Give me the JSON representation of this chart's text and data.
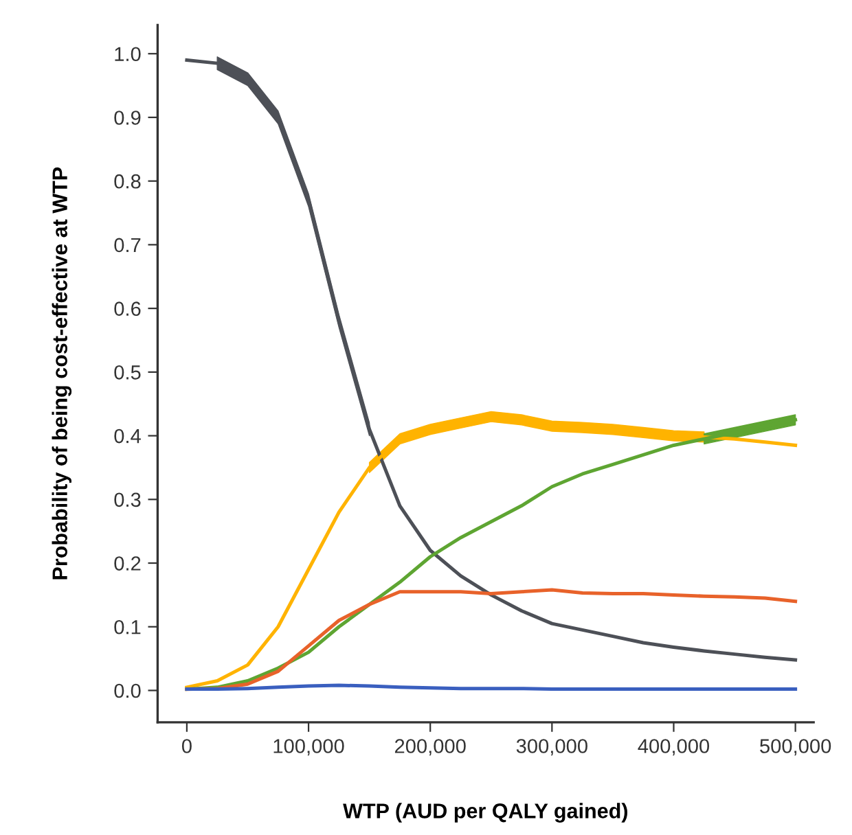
{
  "chart_data": {
    "type": "line",
    "xlabel": "WTP (AUD per QALY gained)",
    "ylabel": "Probability of being cost-effective at WTP",
    "x": [
      0,
      25000,
      50000,
      75000,
      100000,
      125000,
      150000,
      175000,
      200000,
      225000,
      250000,
      275000,
      300000,
      325000,
      350000,
      375000,
      400000,
      425000,
      450000,
      475000,
      500000
    ],
    "series": [
      {
        "color": "#4d5057",
        "values": [
          0.99,
          0.985,
          0.96,
          0.9,
          0.77,
          0.58,
          0.41,
          0.29,
          0.22,
          0.18,
          0.15,
          0.125,
          0.105,
          0.095,
          0.085,
          0.075,
          0.068,
          0.062,
          0.057,
          0.052,
          0.048
        ],
        "lower": [
          null,
          0.975,
          0.95,
          0.89,
          0.76,
          0.57,
          0.4,
          null,
          null,
          null,
          null,
          null,
          null,
          null,
          null,
          null,
          null,
          null,
          null,
          null,
          null
        ],
        "upper": [
          null,
          0.995,
          0.97,
          0.91,
          0.78,
          0.59,
          0.42,
          null,
          null,
          null,
          null,
          null,
          null,
          null,
          null,
          null,
          null,
          null,
          null,
          null,
          null
        ]
      },
      {
        "color": "#ffb300",
        "values": [
          0.005,
          0.015,
          0.04,
          0.1,
          0.19,
          0.28,
          0.35,
          0.395,
          0.41,
          0.42,
          0.43,
          0.425,
          0.415,
          0.413,
          0.41,
          0.405,
          0.4,
          0.398,
          0.395,
          0.39,
          0.385
        ],
        "lower": [
          null,
          null,
          null,
          null,
          null,
          null,
          0.342,
          0.387,
          0.402,
          0.412,
          0.422,
          0.417,
          0.407,
          0.405,
          0.402,
          0.397,
          0.392,
          0.39,
          null,
          null,
          null
        ],
        "upper": [
          null,
          null,
          null,
          null,
          null,
          null,
          0.358,
          0.403,
          0.418,
          0.428,
          0.438,
          0.433,
          0.423,
          0.421,
          0.418,
          0.413,
          0.408,
          0.406,
          null,
          null,
          null
        ]
      },
      {
        "color": "#5ea532",
        "values": [
          0.002,
          0.005,
          0.015,
          0.035,
          0.06,
          0.1,
          0.135,
          0.17,
          0.21,
          0.24,
          0.265,
          0.29,
          0.32,
          0.34,
          0.355,
          0.37,
          0.385,
          0.395,
          0.405,
          0.415,
          0.425
        ],
        "lower": [
          null,
          null,
          null,
          null,
          null,
          null,
          null,
          null,
          null,
          null,
          null,
          null,
          null,
          null,
          null,
          null,
          null,
          0.387,
          0.397,
          0.407,
          0.417
        ],
        "upper": [
          null,
          null,
          null,
          null,
          null,
          null,
          null,
          null,
          null,
          null,
          null,
          null,
          null,
          null,
          null,
          null,
          null,
          0.403,
          0.413,
          0.423,
          0.433
        ]
      },
      {
        "color": "#e8622a",
        "values": [
          0.002,
          0.003,
          0.01,
          0.03,
          0.07,
          0.11,
          0.135,
          0.155,
          0.155,
          0.155,
          0.152,
          0.155,
          0.158,
          0.153,
          0.152,
          0.152,
          0.15,
          0.148,
          0.147,
          0.145,
          0.14
        ]
      },
      {
        "color": "#3a5fbf",
        "values": [
          0.002,
          0.002,
          0.003,
          0.005,
          0.007,
          0.008,
          0.007,
          0.005,
          0.004,
          0.003,
          0.003,
          0.003,
          0.002,
          0.002,
          0.002,
          0.002,
          0.002,
          0.002,
          0.002,
          0.002,
          0.002
        ]
      }
    ],
    "xlim": [
      -24000,
      515000
    ],
    "ylim": [
      -0.05,
      1.045
    ],
    "xticks": [
      {
        "value": 0,
        "label": "0"
      },
      {
        "value": 100000,
        "label": "100,000"
      },
      {
        "value": 200000,
        "label": "200,000"
      },
      {
        "value": 300000,
        "label": "300,000"
      },
      {
        "value": 400000,
        "label": "400,000"
      },
      {
        "value": 500000,
        "label": "500,000"
      }
    ],
    "yticks": [
      {
        "value": 0,
        "label": "0.0"
      },
      {
        "value": 0.1,
        "label": "0.1"
      },
      {
        "value": 0.2,
        "label": "0.2"
      },
      {
        "value": 0.3,
        "label": "0.3"
      },
      {
        "value": 0.4,
        "label": "0.4"
      },
      {
        "value": 0.5,
        "label": "0.5"
      },
      {
        "value": 0.6,
        "label": "0.6"
      },
      {
        "value": 0.7,
        "label": "0.7"
      },
      {
        "value": 0.8,
        "label": "0.8"
      },
      {
        "value": 0.9,
        "label": "0.9"
      },
      {
        "value": 1,
        "label": "1.0"
      }
    ],
    "grid": false,
    "line_style": "solid",
    "marker": "none"
  }
}
